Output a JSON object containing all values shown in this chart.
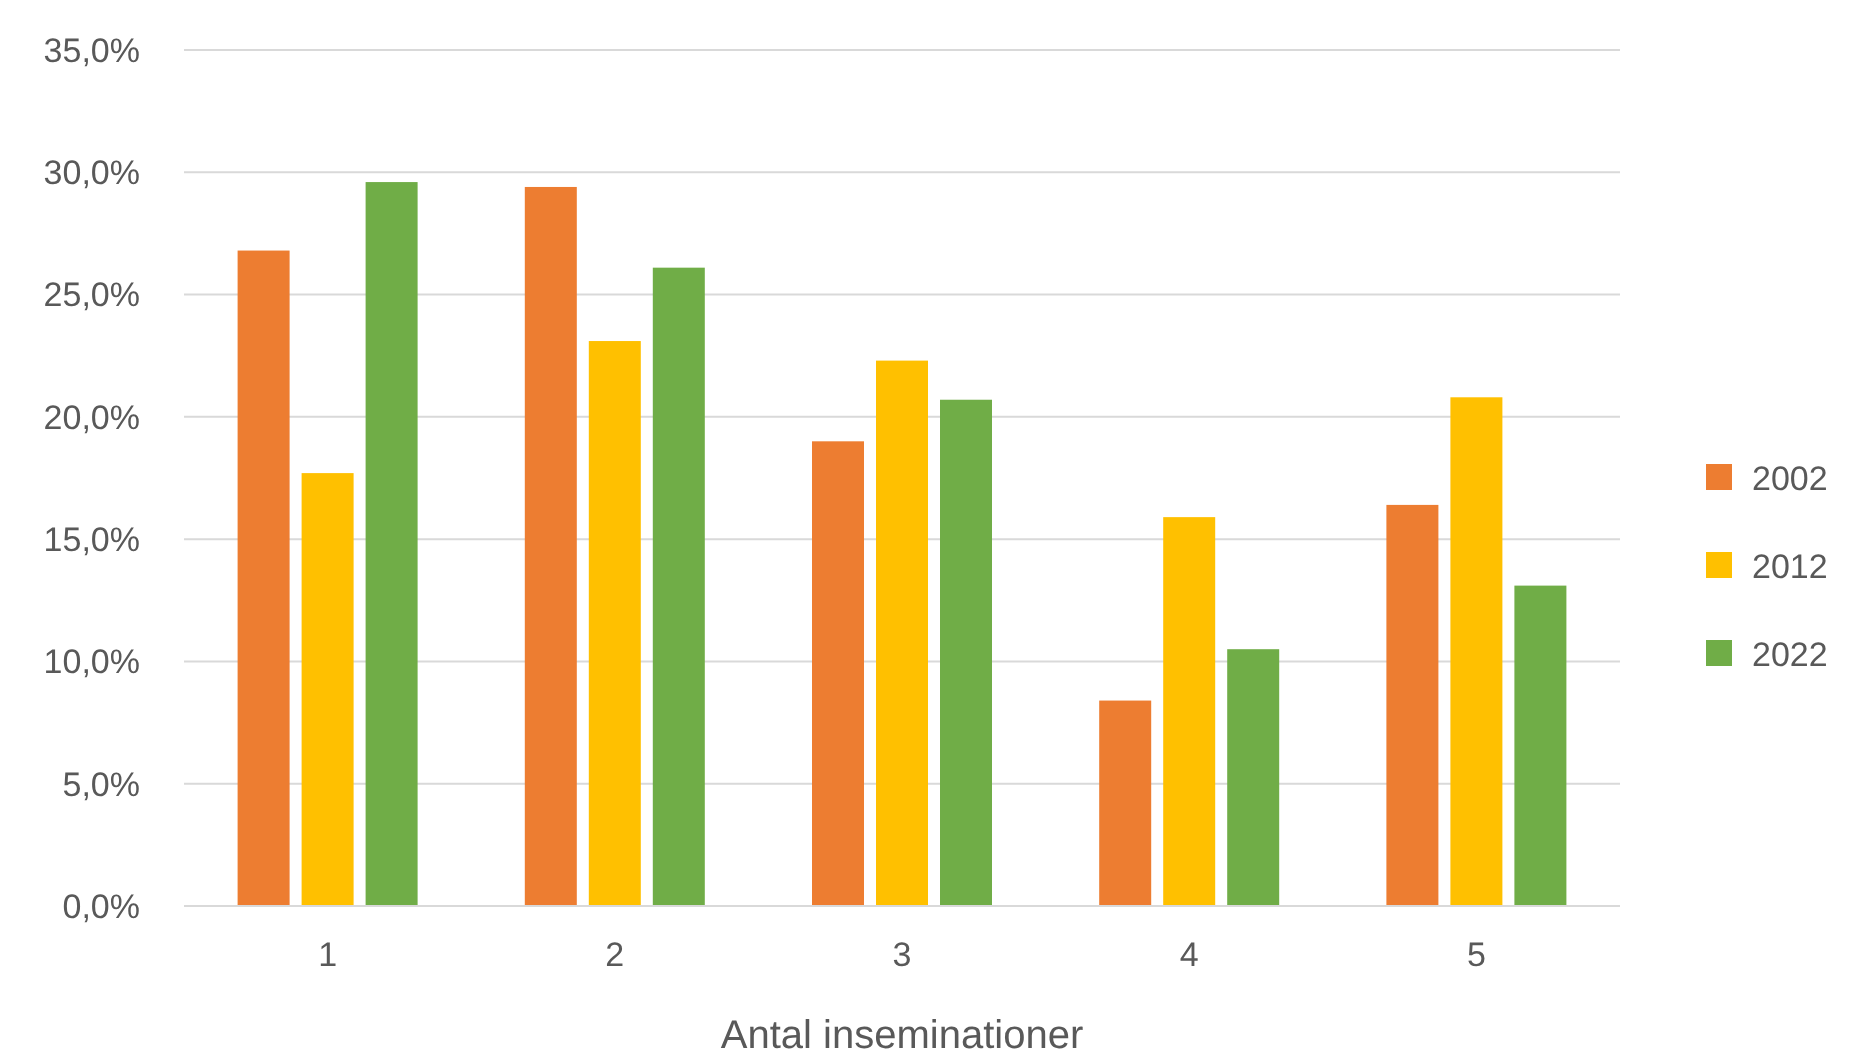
{
  "chart_data": {
    "type": "bar",
    "xlabel": "Antal inseminationer",
    "categories": [
      "1",
      "2",
      "3",
      "4",
      "5"
    ],
    "series": [
      {
        "name": "2002",
        "color": "#ed7d31",
        "values": [
          26.8,
          29.4,
          19.0,
          8.4,
          16.4
        ]
      },
      {
        "name": "2012",
        "color": "#ffc000",
        "values": [
          17.7,
          23.1,
          22.3,
          15.9,
          20.8
        ]
      },
      {
        "name": "2022",
        "color": "#70ad47",
        "values": [
          29.6,
          26.1,
          20.7,
          10.5,
          13.1
        ]
      }
    ],
    "ylim": [
      0,
      35
    ],
    "yticks": [
      {
        "value": 0,
        "label": "0,0%"
      },
      {
        "value": 5,
        "label": "5,0%"
      },
      {
        "value": 10,
        "label": "10,0%"
      },
      {
        "value": 15,
        "label": "15,0%"
      },
      {
        "value": 20,
        "label": "20,0%"
      },
      {
        "value": 25,
        "label": "25,0%"
      },
      {
        "value": 30,
        "label": "30,0%"
      },
      {
        "value": 35,
        "label": "35,0%"
      }
    ],
    "grid": "y",
    "legend": "right"
  }
}
